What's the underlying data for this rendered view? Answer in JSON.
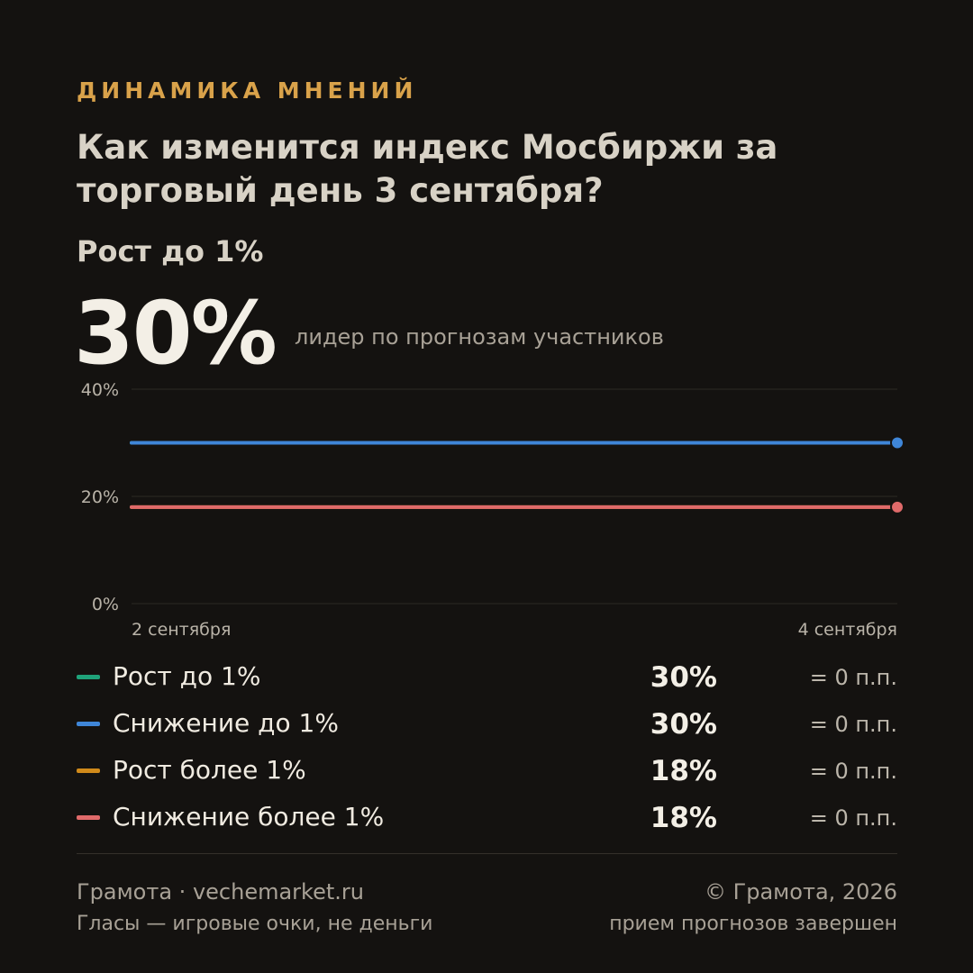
{
  "header": {
    "kicker": "ДИНАМИКА МНЕНИЙ",
    "title": "Как изменится индекс Мосбиржи за торговый день 3 сентября?"
  },
  "leader": {
    "name": "Рост до 1%",
    "value": "30%",
    "description": "лидер по прогнозам участников"
  },
  "chart_data": {
    "type": "line",
    "x": [
      "2 сентября",
      "4 сентября"
    ],
    "ylim": [
      0,
      40
    ],
    "yticks": [
      0,
      20,
      40
    ],
    "ytick_labels": [
      "0%",
      "20%",
      "40%"
    ],
    "grid": true,
    "series": [
      {
        "name": "Рост до 1%",
        "color": "#1fa37a",
        "values": [
          30,
          30
        ]
      },
      {
        "name": "Снижение до 1%",
        "color": "#3f86d8",
        "values": [
          30,
          30
        ]
      },
      {
        "name": "Рост более 1%",
        "color": "#d08a1a",
        "values": [
          18,
          18
        ]
      },
      {
        "name": "Снижение более 1%",
        "color": "#e06a6a",
        "values": [
          18,
          18
        ]
      }
    ]
  },
  "legend": [
    {
      "name": "Рост до 1%",
      "color": "#1fa37a",
      "value": "30%",
      "change": "= 0 п.п."
    },
    {
      "name": "Снижение до 1%",
      "color": "#3f86d8",
      "value": "30%",
      "change": "= 0 п.п."
    },
    {
      "name": "Рост более 1%",
      "color": "#d08a1a",
      "value": "18%",
      "change": "= 0 п.п."
    },
    {
      "name": "Снижение более 1%",
      "color": "#e06a6a",
      "value": "18%",
      "change": "= 0 п.п."
    }
  ],
  "footer": {
    "brand": "Грамота · vechemarket.ru",
    "disclaimer": "Гласы — игровые очки, не деньги",
    "copyright": "© Грамота, 2026",
    "status": "прием прогнозов завершен"
  }
}
